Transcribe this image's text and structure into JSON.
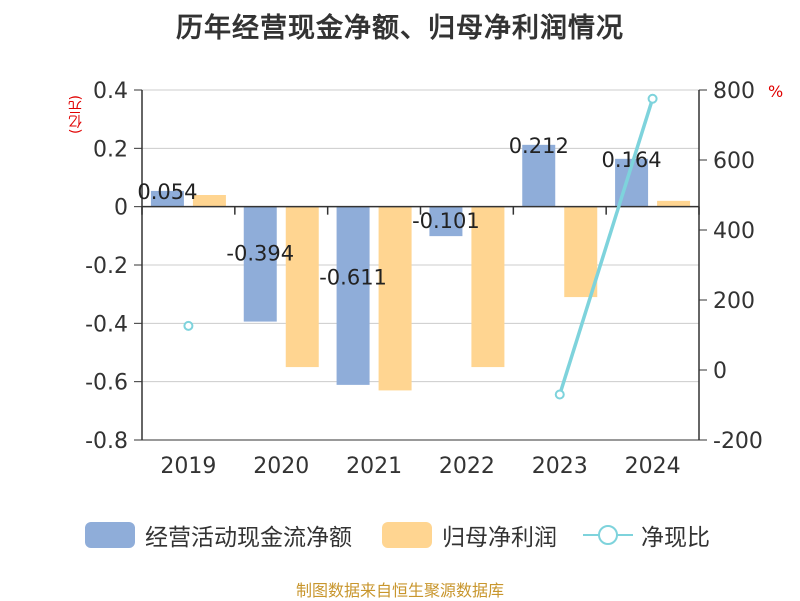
{
  "title": "历年经营现金净额、归母净利润情况",
  "left_unit": "(亿元)",
  "right_unit": "%",
  "source": "制图数据来自恒生聚源数据库",
  "colors": {
    "cash": "#8fadd9",
    "profit": "#ffd591",
    "ratio": "#7ed3dc",
    "unit": "#e00000",
    "source": "#c8962d"
  },
  "chart_data": {
    "type": "bar",
    "categories": [
      "2019",
      "2020",
      "2021",
      "2022",
      "2023",
      "2024"
    ],
    "series": [
      {
        "name": "经营活动现金流净额",
        "type": "bar",
        "axis": "left",
        "values": [
          0.054,
          -0.394,
          -0.611,
          -0.101,
          0.212,
          0.164
        ],
        "labels": [
          "0.054",
          "-0.394",
          "-0.611",
          "-0.101",
          "0.212",
          "0.164"
        ]
      },
      {
        "name": "归母净利润",
        "type": "bar",
        "axis": "left",
        "values": [
          0.04,
          -0.55,
          -0.63,
          -0.55,
          -0.31,
          0.02
        ]
      },
      {
        "name": "净现比",
        "type": "line",
        "axis": "right",
        "values": [
          126,
          null,
          null,
          null,
          -70,
          775
        ]
      }
    ],
    "left_axis": {
      "min": -0.8,
      "max": 0.4,
      "ticks": [
        "0.4",
        "0.2",
        "0",
        "-0.2",
        "-0.4",
        "-0.6",
        "-0.8"
      ],
      "tick_values": [
        0.4,
        0.2,
        0,
        -0.2,
        -0.4,
        -0.6,
        -0.8
      ]
    },
    "right_axis": {
      "min": -200,
      "max": 800,
      "ticks": [
        "800",
        "600",
        "400",
        "200",
        "0",
        "-200"
      ],
      "tick_values": [
        800,
        600,
        400,
        200,
        0,
        -200
      ]
    },
    "grid": true,
    "legend_position": "bottom"
  }
}
